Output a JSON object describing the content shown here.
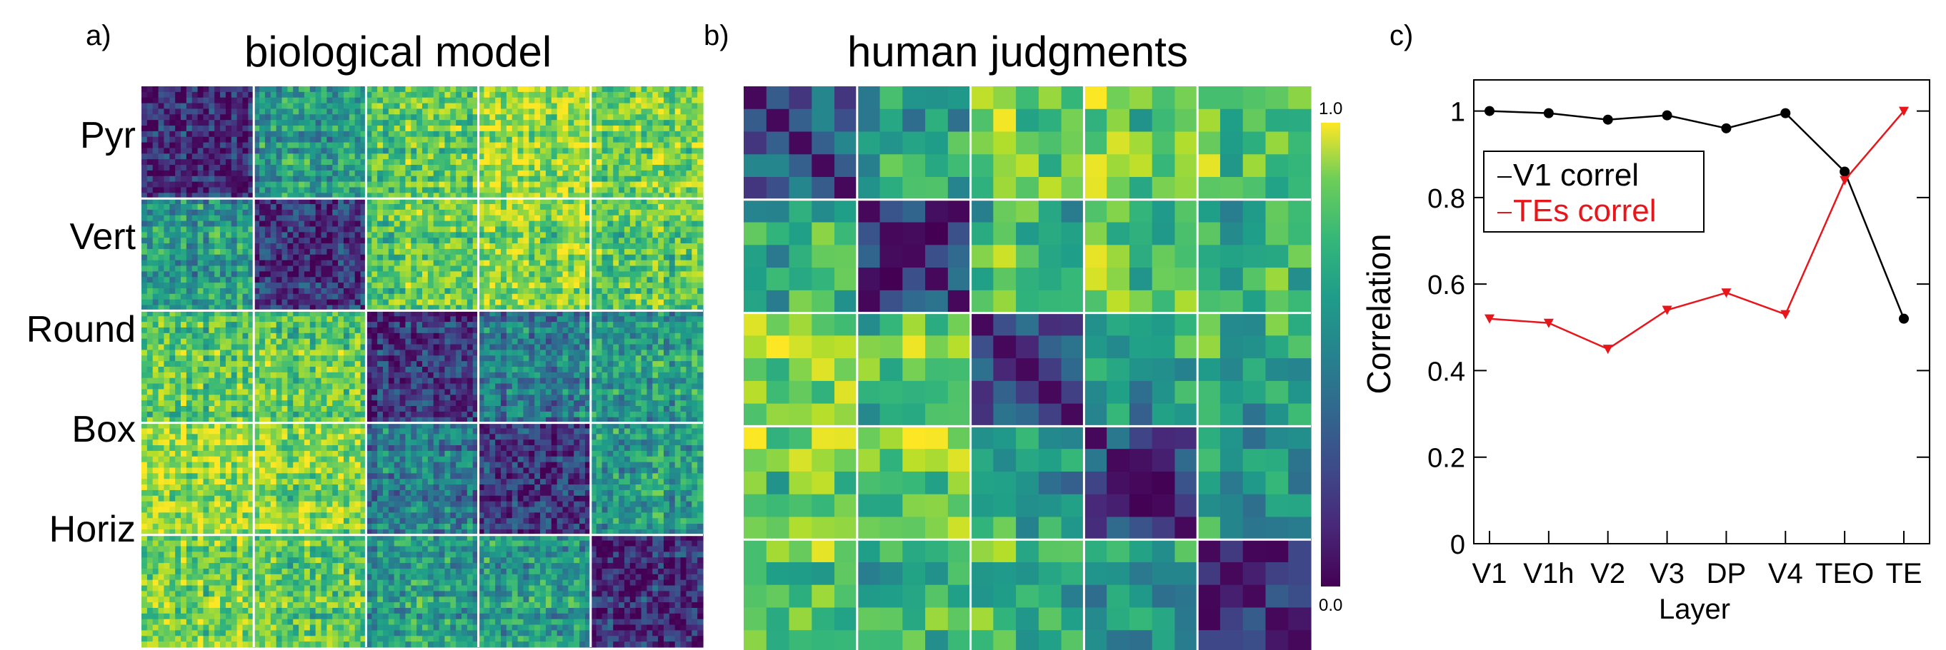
{
  "panels": {
    "a": {
      "letter": "a)",
      "title": "biological model",
      "row_labels": [
        "Pyr",
        "Vert",
        "Round",
        "Box",
        "Horiz"
      ]
    },
    "b": {
      "letter": "b)",
      "title": "human judgments",
      "colorbar": {
        "max_label": "1.0",
        "min_label": "0.0",
        "label": "Correlation"
      }
    },
    "c": {
      "letter": "c)"
    }
  },
  "colors": {
    "red": "#e8161b",
    "black": "#000000",
    "grid_line": "#ffffff"
  },
  "chart_data": [
    {
      "type": "heatmap",
      "title": "biological model",
      "row_labels": [
        "Pyr",
        "Vert",
        "Round",
        "Box",
        "Horiz"
      ],
      "block_mean_dissimilarity": [
        [
          0.15,
          0.55,
          0.75,
          0.85,
          0.8
        ],
        [
          0.55,
          0.15,
          0.75,
          0.8,
          0.75
        ],
        [
          0.75,
          0.75,
          0.15,
          0.4,
          0.55
        ],
        [
          0.85,
          0.8,
          0.4,
          0.15,
          0.55
        ],
        [
          0.8,
          0.75,
          0.55,
          0.55,
          0.15
        ]
      ]
    },
    {
      "type": "heatmap",
      "title": "human judgments",
      "colorbar_range": [
        0.0,
        1.0
      ],
      "colorbar_label": "Correlation",
      "block_mean_dissimilarity": [
        [
          0.25,
          0.5,
          0.75,
          0.75,
          0.7
        ],
        [
          0.55,
          0.2,
          0.7,
          0.75,
          0.7
        ],
        [
          0.8,
          0.75,
          0.2,
          0.55,
          0.6
        ],
        [
          0.75,
          0.8,
          0.55,
          0.2,
          0.55
        ],
        [
          0.7,
          0.7,
          0.65,
          0.55,
          0.2
        ]
      ]
    },
    {
      "type": "line",
      "xlabel": "Layer",
      "ylabel": "Correlation",
      "categories": [
        "V1",
        "V1h",
        "V2",
        "V3",
        "DP",
        "V4",
        "TEO",
        "TE"
      ],
      "ylim": [
        0,
        1.05
      ],
      "yticks": [
        "0",
        "0.2",
        "0.4",
        "0.6",
        "0.8",
        "1"
      ],
      "legend_placement": "upper-left",
      "series": [
        {
          "name": "V1 correl",
          "color": "#000000",
          "marker": "circle",
          "values": [
            1.0,
            0.995,
            0.98,
            0.99,
            0.96,
            0.995,
            0.86,
            0.52
          ]
        },
        {
          "name": "TEs correl",
          "color": "#e8161b",
          "marker": "triangle-down",
          "values": [
            0.52,
            0.51,
            0.45,
            0.54,
            0.58,
            0.53,
            0.84,
            1.0
          ]
        }
      ]
    }
  ]
}
